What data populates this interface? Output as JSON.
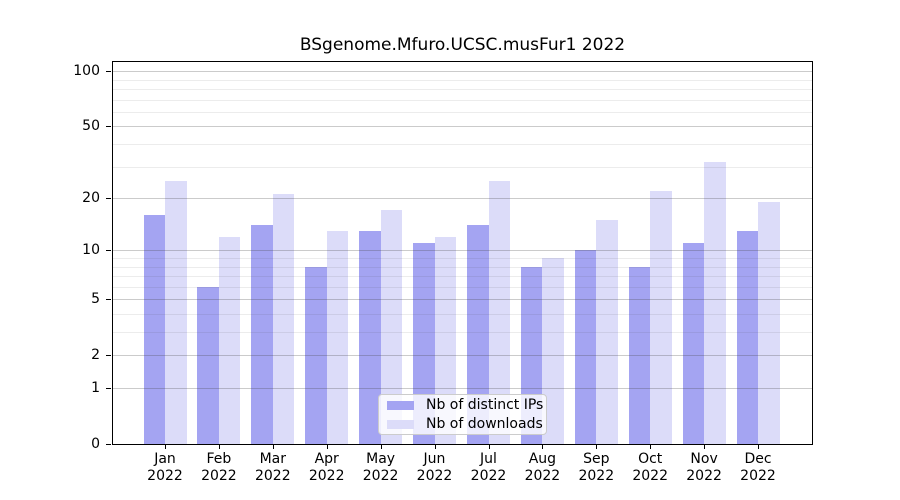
{
  "title": "BSgenome.Mfuro.UCSC.musFur1 2022",
  "chart_data": {
    "type": "bar",
    "title": "BSgenome.Mfuro.UCSC.musFur1 2022",
    "categories": [
      "Jan",
      "Feb",
      "Mar",
      "Apr",
      "May",
      "Jun",
      "Jul",
      "Aug",
      "Sep",
      "Oct",
      "Nov",
      "Dec"
    ],
    "year_label": "2022",
    "series": [
      {
        "name": "Nb of distinct IPs",
        "color": "#a4a4f2",
        "values": [
          16,
          6,
          14,
          8,
          13,
          11,
          14,
          8,
          10,
          8,
          11,
          13
        ]
      },
      {
        "name": "Nb of downloads",
        "color": "#dcdcf9",
        "values": [
          25,
          12,
          21,
          13,
          17,
          12,
          25,
          9,
          15,
          22,
          32,
          19
        ]
      }
    ],
    "xlabel": "",
    "ylabel": "",
    "yscale": "log10(1+v)",
    "ylim": [
      0,
      112
    ],
    "y_major_ticks": [
      100,
      50,
      20,
      10,
      5,
      2,
      1,
      0
    ],
    "y_minor_ticks": [
      3,
      4,
      6,
      7,
      8,
      9,
      30,
      40,
      60,
      70,
      80,
      90
    ],
    "grid": "horizontal, major and minor, drawn faintly over bars",
    "legend_position": "lower center"
  },
  "legend": {
    "entries": [
      "Nb of distinct IPs",
      "Nb of downloads"
    ]
  },
  "colors": {
    "bar_distinct_ips": "#a4a4f2",
    "bar_downloads": "#dcdcf9",
    "axis": "#000000",
    "legend_border": "#cccccc",
    "background": "#ffffff"
  }
}
